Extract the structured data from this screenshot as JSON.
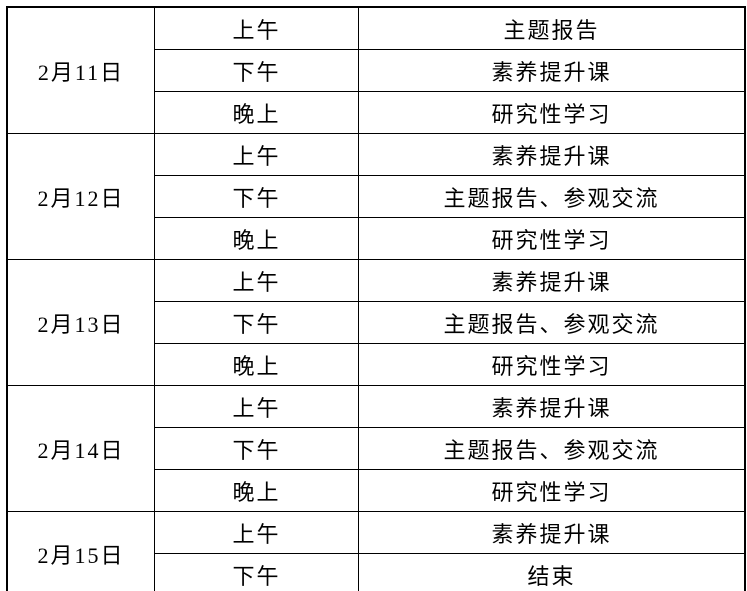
{
  "table": {
    "background_color": "#ffffff",
    "border_color": "#000000",
    "text_color": "#000000",
    "days": [
      {
        "date": "2月11日",
        "sessions": [
          {
            "time": "上午",
            "activity": "主题报告"
          },
          {
            "time": "下午",
            "activity": "素养提升课"
          },
          {
            "time": "晚上",
            "activity": "研究性学习"
          }
        ]
      },
      {
        "date": "2月12日",
        "sessions": [
          {
            "time": "上午",
            "activity": "素养提升课"
          },
          {
            "time": "下午",
            "activity": "主题报告、参观交流"
          },
          {
            "time": "晚上",
            "activity": "研究性学习"
          }
        ]
      },
      {
        "date": "2月13日",
        "sessions": [
          {
            "time": "上午",
            "activity": "素养提升课"
          },
          {
            "time": "下午",
            "activity": "主题报告、参观交流"
          },
          {
            "time": "晚上",
            "activity": "研究性学习"
          }
        ]
      },
      {
        "date": "2月14日",
        "sessions": [
          {
            "time": "上午",
            "activity": "素养提升课"
          },
          {
            "time": "下午",
            "activity": "主题报告、参观交流"
          },
          {
            "time": "晚上",
            "activity": "研究性学习"
          }
        ]
      },
      {
        "date": "2月15日",
        "sessions": [
          {
            "time": "上午",
            "activity": "素养提升课"
          },
          {
            "time": "下午",
            "activity": "结束"
          }
        ]
      }
    ]
  }
}
